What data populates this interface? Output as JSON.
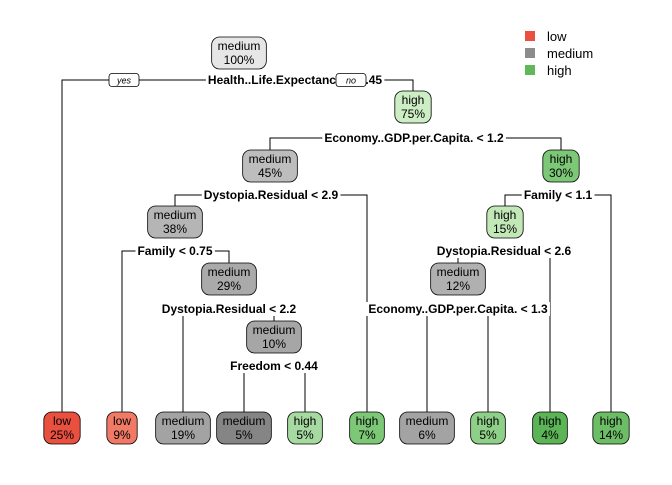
{
  "legend": [
    {
      "label": "low",
      "color": "#e9503f"
    },
    {
      "label": "medium",
      "color": "#8c8c8c"
    },
    {
      "label": "high",
      "color": "#5fb85a"
    }
  ],
  "yes_label": "yes",
  "no_label": "no",
  "nodes": [
    {
      "id": "n1",
      "cls": "medium",
      "pct": "100%",
      "fill": "#e6e6e6"
    },
    {
      "id": "n2",
      "cls": "high",
      "pct": "75%",
      "fill": "#cdeec4"
    },
    {
      "id": "n3",
      "cls": "medium",
      "pct": "45%",
      "fill": "#bdbdbd"
    },
    {
      "id": "n4",
      "cls": "high",
      "pct": "30%",
      "fill": "#7dc876"
    },
    {
      "id": "n5",
      "cls": "medium",
      "pct": "38%",
      "fill": "#b5b5b5"
    },
    {
      "id": "n6",
      "cls": "high",
      "pct": "15%",
      "fill": "#c2e8b8"
    },
    {
      "id": "n7",
      "cls": "medium",
      "pct": "29%",
      "fill": "#aaaaaa"
    },
    {
      "id": "n8",
      "cls": "medium",
      "pct": "12%",
      "fill": "#b0b0b0"
    },
    {
      "id": "n9",
      "cls": "medium",
      "pct": "10%",
      "fill": "#a6a6a6"
    },
    {
      "id": "L1",
      "cls": "low",
      "pct": "25%",
      "fill": "#e9503f"
    },
    {
      "id": "L2",
      "cls": "low",
      "pct": "9%",
      "fill": "#f07a66"
    },
    {
      "id": "L3",
      "cls": "medium",
      "pct": "19%",
      "fill": "#a3a3a3"
    },
    {
      "id": "L4",
      "cls": "medium",
      "pct": "5%",
      "fill": "#858585"
    },
    {
      "id": "L5",
      "cls": "high",
      "pct": "5%",
      "fill": "#a6daa0"
    },
    {
      "id": "L6",
      "cls": "high",
      "pct": "7%",
      "fill": "#7dc876"
    },
    {
      "id": "L7",
      "cls": "medium",
      "pct": "6%",
      "fill": "#a3a3a3"
    },
    {
      "id": "L8",
      "cls": "high",
      "pct": "5%",
      "fill": "#8fd088"
    },
    {
      "id": "L9",
      "cls": "high",
      "pct": "4%",
      "fill": "#5bb456"
    },
    {
      "id": "L10",
      "cls": "high",
      "pct": "14%",
      "fill": "#6dbd66"
    }
  ],
  "splits": [
    {
      "id": "s1",
      "text": "Health..Life.Expectancy. < 0.45"
    },
    {
      "id": "s2",
      "text": "Economy..GDP.per.Capita. < 1.2"
    },
    {
      "id": "s3",
      "text": "Dystopia.Residual < 2.9"
    },
    {
      "id": "s4",
      "text": "Family < 1.1"
    },
    {
      "id": "s5",
      "text": "Family < 0.75"
    },
    {
      "id": "s6",
      "text": "Dystopia.Residual < 2.6"
    },
    {
      "id": "s7",
      "text": "Dystopia.Residual < 2.2"
    },
    {
      "id": "s8",
      "text": "Economy..GDP.per.Capita. < 1.3"
    },
    {
      "id": "s9",
      "text": "Freedom < 0.44"
    }
  ]
}
